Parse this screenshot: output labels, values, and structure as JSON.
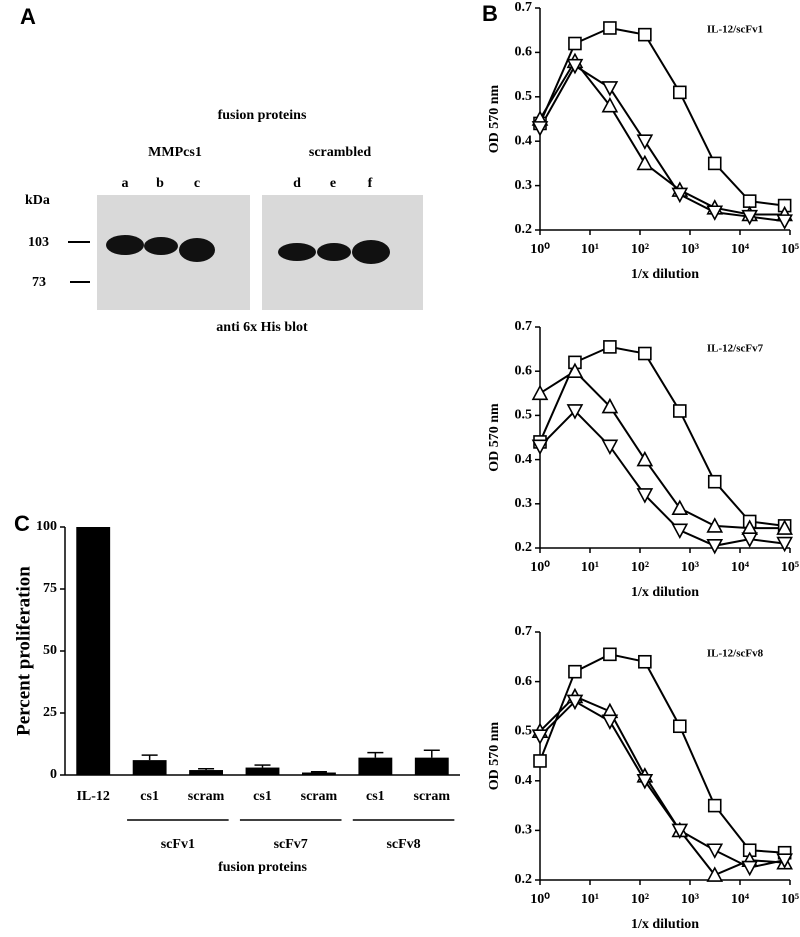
{
  "panel_a": {
    "letter": "A",
    "title": "fusion proteins",
    "groups": [
      "MMPcs1",
      "scrambled"
    ],
    "lanes": [
      "a",
      "b",
      "c",
      "d",
      "e",
      "f"
    ],
    "size_label": "kDa",
    "markers": [
      "103",
      "73"
    ],
    "caption": "anti 6x His blot"
  },
  "chart_data": [
    {
      "type": "line",
      "panel": "B",
      "annotation": "IL-12/scFv1",
      "xlabel": "1/x dilution",
      "ylabel": "OD 570 nm",
      "xscale": "log",
      "x": [
        1,
        5,
        25,
        125,
        625,
        3125,
        15625,
        78125
      ],
      "xlim": [
        1,
        100000
      ],
      "xticks": [
        {
          "value": 1,
          "label": "10⁰"
        },
        {
          "value": 10,
          "label": "10¹"
        },
        {
          "value": 100,
          "label": "10²"
        },
        {
          "value": 1000,
          "label": "10³"
        },
        {
          "value": 10000,
          "label": "10⁴"
        },
        {
          "value": 100000,
          "label": "10⁵"
        }
      ],
      "ylim": [
        0.2,
        0.7
      ],
      "yticks": [
        0.2,
        0.3,
        0.4,
        0.5,
        0.6,
        0.7
      ],
      "series": [
        {
          "color": "#000000",
          "marker": "square",
          "values": [
            0.44,
            0.62,
            0.655,
            0.64,
            0.51,
            0.35,
            0.265,
            0.255
          ]
        },
        {
          "color": "#000000",
          "marker": "triangle-up",
          "values": [
            0.45,
            0.58,
            0.48,
            0.35,
            0.29,
            0.25,
            0.235,
            0.235
          ]
        },
        {
          "color": "#000000",
          "marker": "triangle-down",
          "values": [
            0.43,
            0.57,
            0.52,
            0.4,
            0.28,
            0.24,
            0.23,
            0.22
          ]
        }
      ]
    },
    {
      "type": "line",
      "annotation": "IL-12/scFv7",
      "xlabel": "1/x dilution",
      "ylabel": "OD 570 nm",
      "xscale": "log",
      "x": [
        1,
        5,
        25,
        125,
        625,
        3125,
        15625,
        78125
      ],
      "xlim": [
        1,
        100000
      ],
      "xticks": [
        {
          "value": 1,
          "label": "10⁰"
        },
        {
          "value": 10,
          "label": "10¹"
        },
        {
          "value": 100,
          "label": "10²"
        },
        {
          "value": 1000,
          "label": "10³"
        },
        {
          "value": 10000,
          "label": "10⁴"
        },
        {
          "value": 100000,
          "label": "10⁵"
        }
      ],
      "ylim": [
        0.2,
        0.7
      ],
      "yticks": [
        0.2,
        0.3,
        0.4,
        0.5,
        0.6,
        0.7
      ],
      "series": [
        {
          "color": "#000000",
          "marker": "square",
          "values": [
            0.44,
            0.62,
            0.655,
            0.64,
            0.51,
            0.35,
            0.26,
            0.25
          ]
        },
        {
          "color": "#000000",
          "marker": "triangle-up",
          "values": [
            0.55,
            0.6,
            0.52,
            0.4,
            0.29,
            0.25,
            0.245,
            0.245
          ]
        },
        {
          "color": "#000000",
          "marker": "triangle-down",
          "values": [
            0.43,
            0.51,
            0.43,
            0.32,
            0.24,
            0.205,
            0.22,
            0.21
          ]
        }
      ]
    },
    {
      "type": "line",
      "annotation": "IL-12/scFv8",
      "xlabel": "1/x dilution",
      "ylabel": "OD 570 nm",
      "xscale": "log",
      "x": [
        1,
        5,
        25,
        125,
        625,
        3125,
        15625,
        78125
      ],
      "xlim": [
        1,
        100000
      ],
      "xticks": [
        {
          "value": 1,
          "label": "10⁰"
        },
        {
          "value": 10,
          "label": "10¹"
        },
        {
          "value": 100,
          "label": "10²"
        },
        {
          "value": 1000,
          "label": "10³"
        },
        {
          "value": 10000,
          "label": "10⁴"
        },
        {
          "value": 100000,
          "label": "10⁵"
        }
      ],
      "ylim": [
        0.2,
        0.7
      ],
      "yticks": [
        0.2,
        0.3,
        0.4,
        0.5,
        0.6,
        0.7
      ],
      "series": [
        {
          "color": "#000000",
          "marker": "square",
          "values": [
            0.44,
            0.62,
            0.655,
            0.64,
            0.51,
            0.35,
            0.26,
            0.255
          ]
        },
        {
          "color": "#000000",
          "marker": "triangle-up",
          "values": [
            0.5,
            0.57,
            0.54,
            0.41,
            0.3,
            0.21,
            0.24,
            0.235
          ]
        },
        {
          "color": "#000000",
          "marker": "triangle-down",
          "values": [
            0.49,
            0.56,
            0.52,
            0.4,
            0.3,
            0.26,
            0.225,
            0.24
          ]
        }
      ]
    },
    {
      "type": "bar",
      "panel": "C",
      "ylabel": "Percent proliferation",
      "xlabel": "fusion proteins",
      "color": "#000000",
      "categories": [
        "IL-12",
        "cs1",
        "scram",
        "cs1",
        "scram",
        "cs1",
        "scram"
      ],
      "values": [
        100,
        6,
        2,
        3,
        1,
        7,
        7
      ],
      "errors": [
        0,
        2,
        0.5,
        1,
        0.3,
        2,
        3
      ],
      "groups": [
        "scFv1",
        "scFv7",
        "scFv8"
      ],
      "ylim": [
        0,
        100
      ],
      "yticks": [
        0,
        25,
        50,
        75,
        100
      ]
    }
  ]
}
